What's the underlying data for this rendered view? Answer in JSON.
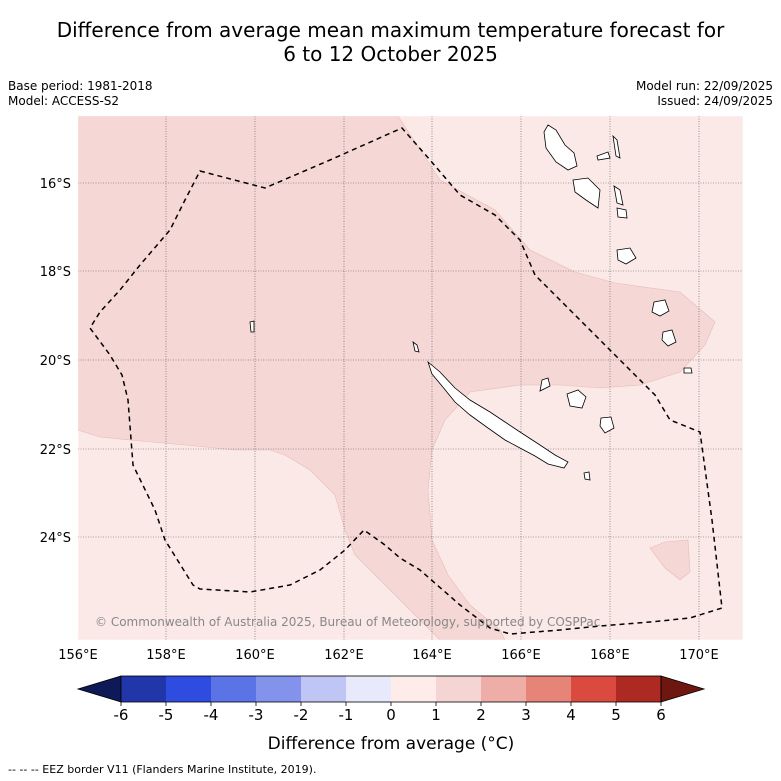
{
  "title": {
    "line1": "Difference from average mean maximum temperature forecast for",
    "line2": "6 to 12 October 2025"
  },
  "info": {
    "base_period": "Base period: 1981-2018",
    "model": "Model: ACCESS-S2",
    "model_run": "Model run: 22/09/2025",
    "issued": "Issued: 24/09/2025"
  },
  "map": {
    "lat_labels": [
      "16°S",
      "18°S",
      "20°S",
      "22°S",
      "24°S"
    ],
    "lon_labels": [
      "156°E",
      "158°E",
      "160°E",
      "162°E",
      "164°E",
      "166°E",
      "168°E",
      "170°E"
    ],
    "copyright": "© Commonwealth of Australia 2025, Bureau of Meteorology, supported by COSPPac",
    "light_fill": "#fbe9e7",
    "medium_fill": "#f5d7d5"
  },
  "colorbar": {
    "ticks": [
      "-6",
      "-5",
      "-4",
      "-3",
      "-2",
      "-1",
      "0",
      "1",
      "2",
      "3",
      "4",
      "5",
      "6"
    ],
    "colors": [
      "#0d1a57",
      "#2137a9",
      "#2f4ce0",
      "#5a73e6",
      "#8393ec",
      "#bfc5f4",
      "#e8eafb",
      "#fdecea",
      "#f5d5d3",
      "#eeaea7",
      "#e68478",
      "#db4a3e",
      "#ad2a22",
      "#6e1711"
    ],
    "label": "Difference from average (°C)"
  },
  "legend": {
    "eez": "-- -- -- EEZ border V11 (Flanders Marine Institute, 2019)."
  }
}
